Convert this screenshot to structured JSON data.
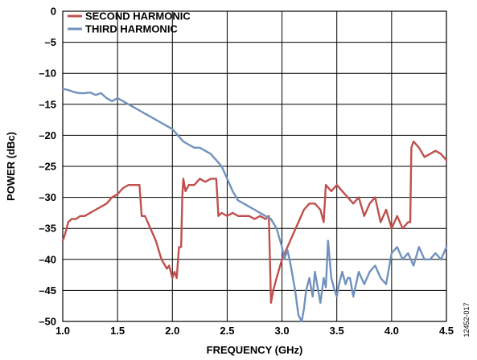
{
  "chart_data": {
    "type": "line",
    "title": "",
    "xlabel": "FREQUENCY (GHz)",
    "ylabel": "POWER (dBc)",
    "xlim": [
      1.0,
      4.5
    ],
    "ylim": [
      -50,
      0
    ],
    "xticks": [
      1.0,
      1.5,
      2.0,
      2.5,
      3.0,
      3.5,
      4.0,
      4.5
    ],
    "xtick_labels": [
      "1.0",
      "1.5",
      "2.0",
      "2.5",
      "3.0",
      "3.5",
      "4.0",
      "4.5"
    ],
    "yticks": [
      0,
      -5,
      -10,
      -15,
      -20,
      -25,
      -30,
      -35,
      -40,
      -45,
      -50
    ],
    "ytick_labels": [
      "0",
      "–5",
      "–10",
      "–15",
      "–20",
      "–25",
      "–30",
      "–35",
      "–40",
      "–45",
      "–50"
    ],
    "grid": true,
    "legend_position": "top-left",
    "figure_id": "12452-017",
    "series": [
      {
        "name": "SECOND HARMONIC",
        "color": "#c0504d",
        "x": [
          1.0,
          1.02,
          1.05,
          1.08,
          1.12,
          1.16,
          1.2,
          1.25,
          1.3,
          1.35,
          1.4,
          1.45,
          1.5,
          1.55,
          1.6,
          1.65,
          1.7,
          1.72,
          1.75,
          1.8,
          1.85,
          1.9,
          1.95,
          1.97,
          2.0,
          2.02,
          2.04,
          2.06,
          2.08,
          2.09,
          2.1,
          2.12,
          2.15,
          2.2,
          2.25,
          2.3,
          2.35,
          2.4,
          2.41,
          2.42,
          2.45,
          2.5,
          2.55,
          2.6,
          2.65,
          2.7,
          2.75,
          2.8,
          2.85,
          2.88,
          2.89,
          2.9,
          2.92,
          2.95,
          3.0,
          3.05,
          3.1,
          3.15,
          3.2,
          3.25,
          3.3,
          3.35,
          3.38,
          3.4,
          3.45,
          3.5,
          3.55,
          3.6,
          3.65,
          3.7,
          3.75,
          3.8,
          3.85,
          3.9,
          3.95,
          4.0,
          4.05,
          4.1,
          4.15,
          4.17,
          4.18,
          4.2,
          4.25,
          4.3,
          4.35,
          4.4,
          4.45,
          4.5
        ],
        "y": [
          -37,
          -36,
          -34,
          -33.5,
          -33.5,
          -33,
          -33,
          -32.5,
          -32,
          -31.5,
          -31,
          -30,
          -29.5,
          -28.5,
          -28,
          -28,
          -28,
          -33,
          -33,
          -35,
          -37,
          -40,
          -41.5,
          -41,
          -43,
          -42,
          -43,
          -38,
          -38,
          -30,
          -27,
          -29,
          -28,
          -28,
          -27,
          -27.5,
          -27,
          -27,
          -30,
          -33,
          -32.5,
          -33,
          -32.5,
          -33,
          -33,
          -33,
          -33.5,
          -33,
          -33.5,
          -33,
          -40,
          -47,
          -45,
          -43,
          -40,
          -38,
          -36,
          -34,
          -32,
          -31,
          -31,
          -32,
          -34,
          -28,
          -29,
          -28,
          -29,
          -30,
          -31,
          -30,
          -33,
          -31,
          -30,
          -34,
          -32,
          -35,
          -33,
          -35,
          -34,
          -34,
          -22,
          -21,
          -22,
          -23.5,
          -23,
          -22.5,
          -23,
          -24
        ]
      },
      {
        "name": "THIRD HARMONIC",
        "color": "#7192be",
        "x": [
          1.0,
          1.05,
          1.1,
          1.15,
          1.2,
          1.25,
          1.3,
          1.35,
          1.4,
          1.45,
          1.5,
          1.55,
          1.6,
          1.65,
          1.7,
          1.75,
          1.8,
          1.85,
          1.9,
          1.95,
          2.0,
          2.05,
          2.1,
          2.15,
          2.2,
          2.25,
          2.3,
          2.35,
          2.4,
          2.45,
          2.5,
          2.55,
          2.6,
          2.65,
          2.7,
          2.75,
          2.8,
          2.85,
          2.9,
          2.95,
          3.0,
          3.02,
          3.05,
          3.08,
          3.1,
          3.12,
          3.15,
          3.18,
          3.2,
          3.22,
          3.25,
          3.28,
          3.3,
          3.32,
          3.35,
          3.38,
          3.4,
          3.42,
          3.45,
          3.48,
          3.5,
          3.52,
          3.55,
          3.58,
          3.6,
          3.62,
          3.65,
          3.7,
          3.75,
          3.8,
          3.85,
          3.9,
          3.95,
          4.0,
          4.05,
          4.1,
          4.15,
          4.2,
          4.25,
          4.3,
          4.35,
          4.4,
          4.45,
          4.5
        ],
        "y": [
          -12.5,
          -12.7,
          -13,
          -13.2,
          -13.2,
          -13.1,
          -13.5,
          -13.2,
          -14,
          -14.5,
          -14,
          -14.5,
          -15,
          -15.5,
          -16,
          -16.5,
          -17,
          -17.5,
          -18,
          -18.5,
          -19,
          -20,
          -21,
          -21.5,
          -22,
          -22,
          -22.5,
          -23,
          -24,
          -25,
          -27,
          -29,
          -30.5,
          -31,
          -31.5,
          -32,
          -32.5,
          -33,
          -33.5,
          -35,
          -38,
          -40,
          -38.5,
          -41,
          -43,
          -45,
          -49,
          -50,
          -48,
          -45,
          -43,
          -46,
          -42,
          -44,
          -47,
          -43,
          -44.5,
          -37,
          -43,
          -45,
          -46,
          -44,
          -42,
          -44,
          -43,
          -43,
          -46,
          -42,
          -44,
          -42,
          -41,
          -43,
          -44,
          -39,
          -38,
          -40,
          -39,
          -41,
          -38,
          -40,
          -40,
          -39,
          -40,
          -38
        ]
      }
    ]
  }
}
